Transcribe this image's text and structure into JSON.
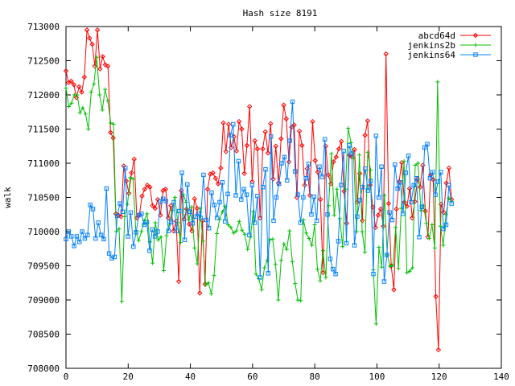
{
  "chart_data": {
    "type": "line",
    "title": "Hash size 8191",
    "xlabel": "",
    "ylabel": "walk",
    "xlim": [
      0,
      140
    ],
    "ylim": [
      708000,
      713000
    ],
    "xticks": [
      0,
      20,
      40,
      60,
      80,
      100,
      120,
      140
    ],
    "yticks": [
      708000,
      708500,
      709000,
      709500,
      710000,
      710500,
      711000,
      711500,
      712000,
      712500,
      713000
    ],
    "grid": false,
    "legend": "top-right",
    "series": [
      {
        "name": "abcd64d",
        "color": "#ff0000",
        "marker": "diamond",
        "values": [
          712350,
          712180,
          712200,
          712150,
          711960,
          712120,
          712040,
          712260,
          712950,
          712830,
          712740,
          712420,
          712950,
          712380,
          712560,
          712440,
          712420,
          711450,
          711370,
          710260,
          710240,
          710220,
          710960,
          710740,
          710560,
          710860,
          711060,
          710200,
          710250,
          710520,
          710620,
          710680,
          710650,
          710380,
          710340,
          710470,
          710240,
          710600,
          710620,
          710200,
          710380,
          710010,
          710150,
          709270,
          710600,
          710180,
          710330,
          710110,
          710010,
          710480,
          710340,
          709100,
          710160,
          709230,
          710620,
          710840,
          710860,
          710780,
          710700,
          710930,
          711590,
          711170,
          711570,
          711230,
          711390,
          711180,
          711610,
          711500,
          710850,
          711260,
          711830,
          710730,
          711330,
          711210,
          710200,
          711210,
          711460,
          711150,
          711580,
          710770,
          711250,
          710710,
          711360,
          711850,
          711650,
          711020,
          711530,
          711560,
          710500,
          711470,
          711260,
          710680,
          710920,
          710530,
          711610,
          711040,
          710870,
          710470,
          709400,
          711250,
          710830,
          710700,
          711020,
          711090,
          711210,
          711320,
          710590,
          710120,
          711120,
          711090,
          711200,
          710430,
          710850,
          710160,
          711410,
          711620,
          710680,
          710360,
          710060,
          710240,
          710330,
          710080,
          712600,
          710410,
          709500,
          709150,
          710330,
          710730,
          711010,
          710430,
          710370,
          710630,
          710200,
          710440,
          710770,
          710650,
          710970,
          710300,
          709920,
          710830,
          710760,
          709050,
          708270,
          710400,
          710280,
          710710,
          710930,
          710470
        ],
        "_note_unused": null
      },
      {
        "name": "jenkins2b",
        "color": "#00c000",
        "marker": "plus",
        "values": [
          712100,
          711830,
          711880,
          712000,
          712000,
          711740,
          711810,
          711720,
          711500,
          712040,
          712160,
          712550,
          712000,
          711780,
          712080,
          711910,
          711590,
          711570,
          710000,
          710040,
          708980,
          710220,
          710400,
          710790,
          710770,
          710000,
          709870,
          710000,
          710160,
          710260,
          709850,
          709540,
          710130,
          709880,
          709920,
          709430,
          709940,
          710120,
          710310,
          710500,
          710130,
          709840,
          710540,
          710430,
          710170,
          710360,
          709760,
          709530,
          710340,
          709860,
          709220,
          709250,
          709090,
          709360,
          709970,
          710180,
          710290,
          710370,
          710100,
          710060,
          709980,
          710010,
          710150,
          710020,
          709960,
          709740,
          709920,
          710290,
          709380,
          709310,
          709150,
          709470,
          709580,
          709880,
          709890,
          709520,
          709000,
          709580,
          709820,
          709740,
          710010,
          709560,
          709240,
          709000,
          708990,
          710170,
          709980,
          709900,
          709800,
          710100,
          709450,
          709280,
          709720,
          709330,
          710380,
          711140,
          710240,
          710620,
          710190,
          709780,
          710620,
          711510,
          711300,
          711070,
          710000,
          711120,
          710000,
          709700,
          711160,
          710900,
          709440,
          708650,
          709770,
          709480,
          710530,
          709660,
          709490,
          709510,
          710060,
          709460,
          710340,
          711030,
          709400,
          709420,
          709470,
          710970,
          711000,
          710310,
          710380,
          710120,
          709900,
          710100,
          709760,
          712190,
          710080,
          709800,
          710250,
          710490,
          710440
        ],
        "_note_unused": null
      },
      {
        "name": "jenkins64",
        "color": "#0080ff",
        "marker": "square",
        "values": [
          709890,
          710000,
          709930,
          709790,
          709930,
          709850,
          710000,
          709900,
          709950,
          710390,
          710330,
          709900,
          710130,
          709950,
          709890,
          710630,
          709680,
          709610,
          709630,
          710230,
          710410,
          710290,
          710930,
          709930,
          710280,
          709780,
          709990,
          710240,
          710260,
          710100,
          710140,
          709720,
          710030,
          709930,
          710000,
          710440,
          710480,
          710450,
          710010,
          710140,
          710430,
          710010,
          710300,
          710860,
          709880,
          710690,
          710290,
          710120,
          710220,
          710260,
          710200,
          710830,
          710170,
          710050,
          710570,
          710390,
          710200,
          710430,
          710720,
          710150,
          710550,
          711410,
          711570,
          710530,
          711030,
          710470,
          710620,
          710540,
          709950,
          710680,
          710130,
          710520,
          709330,
          710650,
          710910,
          709390,
          711390,
          710160,
          710500,
          710700,
          711000,
          711090,
          710750,
          711330,
          711900,
          710880,
          710540,
          710130,
          710500,
          710780,
          710990,
          710250,
          710510,
          710160,
          710950,
          710800,
          711350,
          710250,
          709600,
          709450,
          709380,
          709860,
          710680,
          711180,
          709830,
          711260,
          711140,
          709800,
          710220,
          710460,
          710650,
          710920,
          710600,
          710740,
          709380,
          711400,
          710500,
          710950,
          709270,
          709660,
          710280,
          710170,
          710980,
          710630,
          710720,
          710260,
          710860,
          711110,
          710430,
          710680,
          710780,
          709920,
          710360,
          711230,
          711280,
          710780,
          710870,
          710540,
          710730,
          710870,
          710040,
          710100,
          710680,
          710410
        ]
      }
    ]
  }
}
